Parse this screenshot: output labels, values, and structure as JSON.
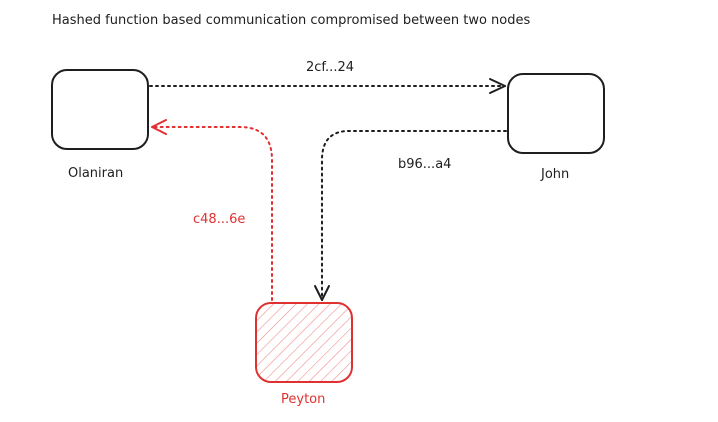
{
  "title": "Hashed function based communication compromised between two nodes",
  "colors": {
    "ink": "#1e1e1e",
    "attacker": "#e03131",
    "attacker_fill": "#ffc9c9"
  },
  "nodes": {
    "olaniran": {
      "label": "Olaniran"
    },
    "john": {
      "label": "John"
    },
    "peyton": {
      "label": "Peyton"
    }
  },
  "edges": {
    "olaniran_to_john": {
      "label": "2cf...24"
    },
    "john_to_peyton": {
      "label": "b96...a4"
    },
    "peyton_to_olaniran": {
      "label": "c48...6e"
    }
  }
}
